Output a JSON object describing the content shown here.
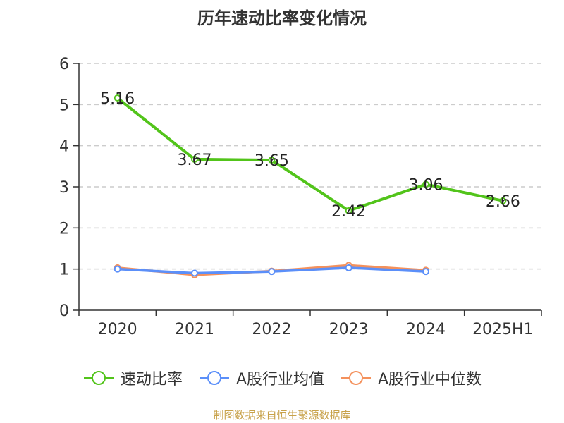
{
  "chart_data": {
    "type": "line",
    "title": "历年速动比率变化情况",
    "categories": [
      "2020",
      "2021",
      "2022",
      "2023",
      "2024",
      "2025H1"
    ],
    "ylim": [
      0,
      6
    ],
    "yticks": [
      "0",
      "1",
      "2",
      "3",
      "4",
      "5",
      "6"
    ],
    "grid": true,
    "legend_position": "bottom",
    "series": [
      {
        "name": "速动比率",
        "color": "#52c41a",
        "values": [
          5.16,
          3.67,
          3.65,
          2.42,
          3.06,
          2.66
        ],
        "labels": [
          "5.16",
          "3.67",
          "3.65",
          "2.42",
          "3.06",
          "2.66"
        ]
      },
      {
        "name": "A股行业均值",
        "color": "#5b8ff9",
        "values": [
          1.0,
          0.9,
          0.94,
          1.03,
          0.94,
          null
        ]
      },
      {
        "name": "A股行业中位数",
        "color": "#f4915c",
        "values": [
          1.03,
          0.86,
          0.95,
          1.09,
          0.97,
          null
        ]
      }
    ]
  },
  "source": "制图数据来自恒生聚源数据库"
}
